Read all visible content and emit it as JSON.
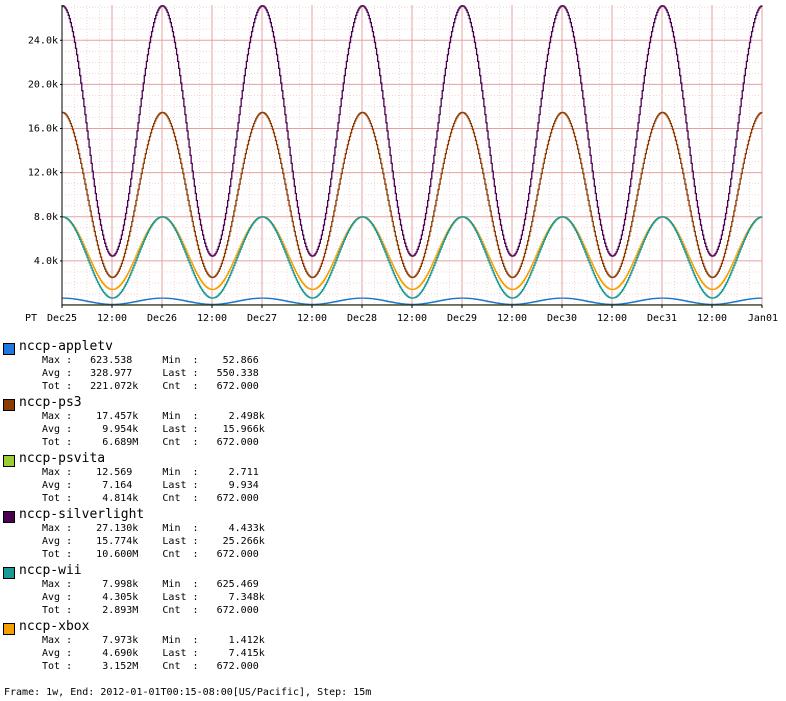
{
  "chart_data": {
    "type": "line",
    "y_ticks": [
      "4.0k",
      "8.0k",
      "12.0k",
      "16.0k",
      "20.0k",
      "24.0k"
    ],
    "y_tick_values": [
      4000,
      8000,
      12000,
      16000,
      20000,
      24000
    ],
    "ylim": [
      0,
      27200
    ],
    "x_tick_labels": [
      "PT",
      "Dec25",
      "12:00",
      "Dec26",
      "12:00",
      "Dec27",
      "12:00",
      "Dec28",
      "12:00",
      "Dec29",
      "12:00",
      "Dec30",
      "12:00",
      "Dec31",
      "12:00",
      "Jan01"
    ],
    "x_range_hours": [
      0,
      168
    ],
    "step_hours": 0.25,
    "grid": true,
    "series": [
      {
        "name": "nccp-appletv",
        "color": "#1f77e0",
        "stroke": "#1b76c8",
        "min": 52.866,
        "max": 623.538,
        "phase_hours": -5.6
      },
      {
        "name": "nccp-ps3",
        "color": "#8b3a00",
        "stroke": "#8b3a00",
        "min": 2498,
        "max": 17457,
        "phase_hours": -5.6
      },
      {
        "name": "nccp-psvita",
        "color": "#9acd32",
        "stroke": "#9acd32",
        "min": 2.711,
        "max": 12.569,
        "phase_hours": -5.6
      },
      {
        "name": "nccp-silverlight",
        "color": "#4b0050",
        "stroke": "#4b0050",
        "min": 4433,
        "max": 27130,
        "phase_hours": -5.6
      },
      {
        "name": "nccp-wii",
        "color": "#1a9a96",
        "stroke": "#1a9a96",
        "min": 625.469,
        "max": 7998,
        "phase_hours": -5.6
      },
      {
        "name": "nccp-xbox",
        "color": "#f5a000",
        "stroke": "#f5a000",
        "min": 1412,
        "max": 7973,
        "phase_hours": -5.6
      }
    ]
  },
  "legend": [
    {
      "name": "nccp-appletv",
      "color": "#1f77e0",
      "stats": "Max :   623.538     Min  :    52.866\nAvg :   328.977     Last :   550.338\nTot :   221.072k    Cnt  :   672.000"
    },
    {
      "name": "nccp-ps3",
      "color": "#8b3a00",
      "stats": "Max :    17.457k    Min  :     2.498k\nAvg :     9.954k    Last :    15.966k\nTot :     6.689M    Cnt  :   672.000"
    },
    {
      "name": "nccp-psvita",
      "color": "#9acd32",
      "stats": "Max :    12.569     Min  :     2.711\nAvg :     7.164     Last :     9.934\nTot :     4.814k    Cnt  :   672.000"
    },
    {
      "name": "nccp-silverlight",
      "color": "#4b0050",
      "stats": "Max :    27.130k    Min  :     4.433k\nAvg :    15.774k    Last :    25.266k\nTot :    10.600M    Cnt  :   672.000"
    },
    {
      "name": "nccp-wii",
      "color": "#1a9a96",
      "stats": "Max :     7.998k    Min  :   625.469\nAvg :     4.305k    Last :     7.348k\nTot :     2.893M    Cnt  :   672.000"
    },
    {
      "name": "nccp-xbox",
      "color": "#f5a000",
      "stats": "Max :     7.973k    Min  :     1.412k\nAvg :     4.690k    Last :     7.415k\nTot :     3.152M    Cnt  :   672.000"
    }
  ],
  "footer": "Frame: 1w, End: 2012-01-01T00:15-08:00[US/Pacific], Step: 15m"
}
